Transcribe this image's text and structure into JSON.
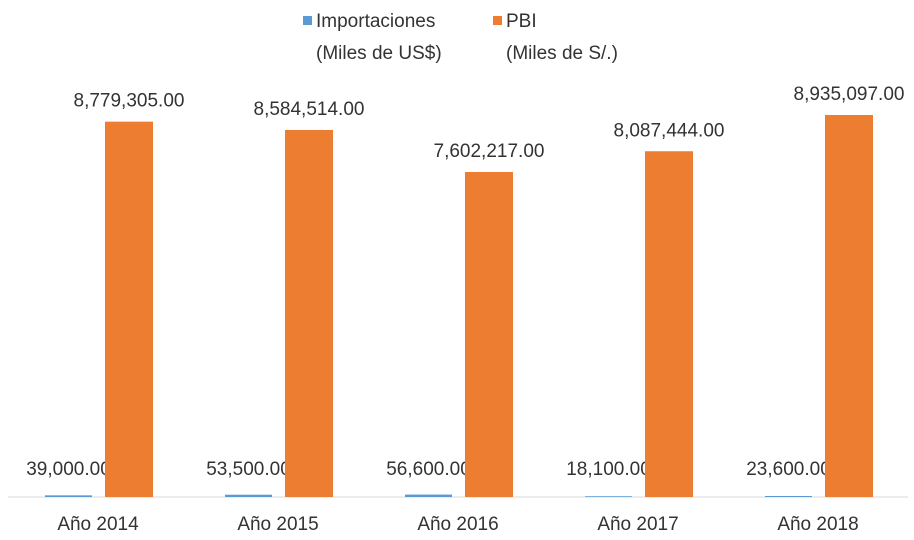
{
  "chart_data": {
    "type": "bar",
    "categories": [
      "Año 2014",
      "Año 2015",
      "Año 2016",
      "Año 2017",
      "Año 2018"
    ],
    "series": [
      {
        "name": "Importaciones (Miles de US$)",
        "color": "#5b9bd5",
        "values": [
          39000,
          53500,
          56600,
          18100,
          23600
        ],
        "value_labels": [
          "39,000.00",
          "53,500.00",
          "56,600.00",
          "18,100.00",
          "23,600.00"
        ]
      },
      {
        "name": "PBI (Miles de S/.)",
        "color": "#ed7d31",
        "values": [
          8779305,
          8584514,
          7602217,
          8087444,
          8935097
        ],
        "value_labels": [
          "8,779,305.00",
          "8,584,514.00",
          "7,602,217.00",
          "8,087,444.00",
          "8,935,097.00"
        ]
      }
    ]
  }
}
